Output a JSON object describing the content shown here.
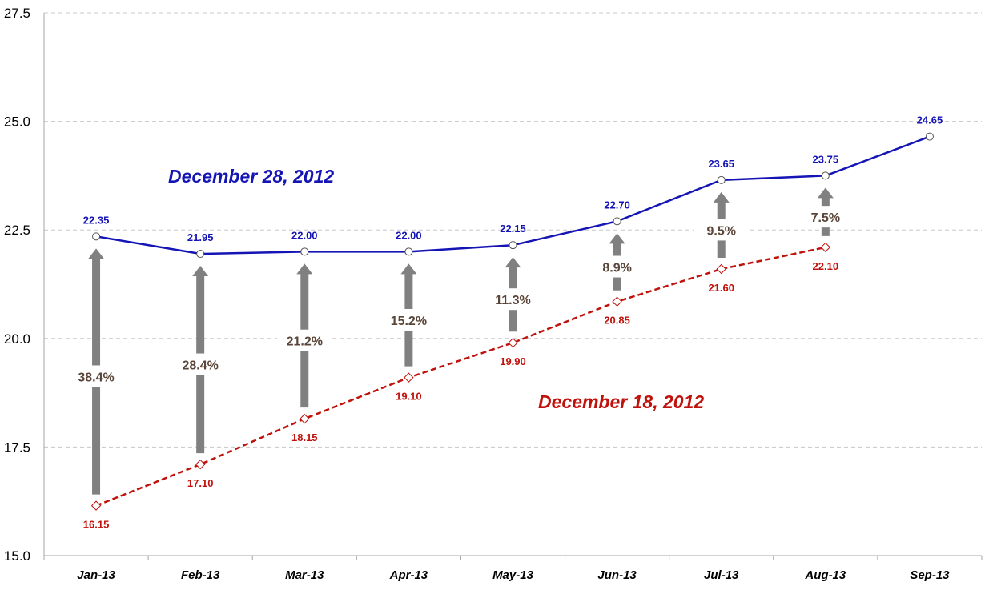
{
  "chart_data": {
    "type": "line",
    "categories": [
      "Jan-13",
      "Feb-13",
      "Mar-13",
      "Apr-13",
      "May-13",
      "Jun-13",
      "Jul-13",
      "Aug-13",
      "Sep-13"
    ],
    "ylim": [
      15.0,
      27.5
    ],
    "yticks": [
      "15.0",
      "17.5",
      "20.0",
      "22.5",
      "25.0",
      "27.5"
    ],
    "grid": true,
    "series": [
      {
        "name": "December 28, 2012",
        "color": "#1515b5",
        "style": "solid",
        "marker": "circle",
        "values": [
          22.35,
          21.95,
          22.0,
          22.0,
          22.15,
          22.7,
          23.65,
          23.75,
          24.65
        ],
        "labels": [
          "22.35",
          "21.95",
          "22.00",
          "22.00",
          "22.15",
          "22.70",
          "23.65",
          "23.75",
          "24.65"
        ]
      },
      {
        "name": "December 18, 2012",
        "color": "#c0120c",
        "style": "dashed",
        "marker": "diamond",
        "values": [
          16.15,
          17.1,
          18.15,
          19.1,
          19.9,
          20.85,
          21.6,
          22.1,
          null
        ],
        "labels": [
          "16.15",
          "17.10",
          "18.15",
          "19.10",
          "19.90",
          "20.85",
          "21.60",
          "22.10",
          ""
        ]
      }
    ],
    "changes": [
      "38.4%",
      "28.4%",
      "21.2%",
      "15.2%",
      "11.3%",
      "8.9%",
      "9.5%",
      "7.5%"
    ],
    "arrow_color": "#808080"
  }
}
